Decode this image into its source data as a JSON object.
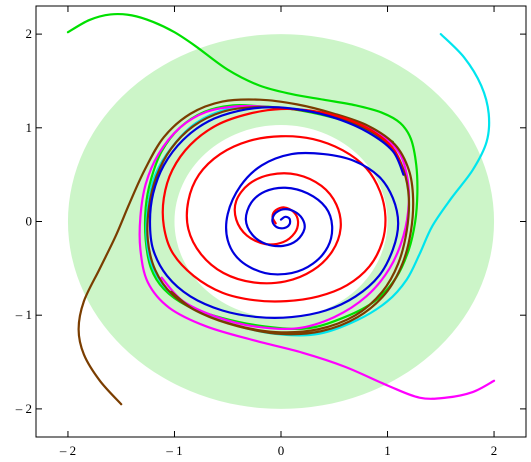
{
  "chart_data": {
    "type": "line",
    "title": "",
    "xlabel": "",
    "ylabel": "",
    "xlim": [
      -2.3,
      2.3
    ],
    "ylim": [
      -2.3,
      2.3
    ],
    "grid": false,
    "x_ticks": [
      {
        "value": -2,
        "label": "– 2"
      },
      {
        "value": -1,
        "label": "– 1"
      },
      {
        "value": 0,
        "label": "0"
      },
      {
        "value": 1,
        "label": "1"
      },
      {
        "value": 2,
        "label": "2"
      }
    ],
    "y_ticks": [
      {
        "value": -2,
        "label": "– 2"
      },
      {
        "value": -1,
        "label": "– 1"
      },
      {
        "value": 0,
        "label": "0"
      },
      {
        "value": 1,
        "label": "1"
      },
      {
        "value": 2,
        "label": "2"
      }
    ],
    "shaded_annulus": {
      "color": "#ccf5c8",
      "center": [
        0,
        0
      ],
      "inner_radius_x": 1.0,
      "inner_radius_y": 1.03,
      "outer_radius_x": 2.0,
      "outer_radius_y": 2.0
    },
    "series": [
      {
        "color": "#00e000",
        "points": [
          [
            -2.0,
            2.02
          ],
          [
            -1.8,
            2.15
          ],
          [
            -1.6,
            2.21
          ],
          [
            -1.4,
            2.2
          ],
          [
            -1.2,
            2.13
          ],
          [
            -1.0,
            2.02
          ],
          [
            -0.8,
            1.87
          ],
          [
            -0.5,
            1.62
          ],
          [
            -0.2,
            1.45
          ],
          [
            0.1,
            1.36
          ],
          [
            0.4,
            1.3
          ],
          [
            0.7,
            1.24
          ],
          [
            0.95,
            1.16
          ],
          [
            1.12,
            1.05
          ],
          [
            1.22,
            0.88
          ],
          [
            1.27,
            0.6
          ],
          [
            1.28,
            0.3
          ],
          [
            1.26,
            0.0
          ],
          [
            1.2,
            -0.3
          ],
          [
            1.08,
            -0.6
          ],
          [
            0.88,
            -0.85
          ],
          [
            0.6,
            -1.02
          ],
          [
            0.25,
            -1.14
          ],
          [
            -0.15,
            -1.12
          ],
          [
            -0.55,
            -1.03
          ],
          [
            -0.88,
            -0.9
          ],
          [
            -1.1,
            -0.72
          ],
          [
            -1.22,
            -0.5
          ],
          [
            -1.27,
            -0.2
          ],
          [
            -1.27,
            0.15
          ],
          [
            -1.22,
            0.45
          ],
          [
            -1.12,
            0.75
          ],
          [
            -0.95,
            1.0
          ],
          [
            -0.72,
            1.17
          ],
          [
            -0.45,
            1.24
          ],
          [
            -0.2,
            1.23
          ],
          [
            0.1,
            1.2
          ],
          [
            0.45,
            1.12
          ],
          [
            0.8,
            1.0
          ],
          [
            1.05,
            0.85
          ]
        ]
      },
      {
        "color": "#00e5ee",
        "points": [
          [
            1.5,
            2.0
          ],
          [
            1.72,
            1.75
          ],
          [
            1.88,
            1.45
          ],
          [
            1.95,
            1.15
          ],
          [
            1.93,
            0.85
          ],
          [
            1.8,
            0.55
          ],
          [
            1.6,
            0.25
          ],
          [
            1.42,
            -0.05
          ],
          [
            1.3,
            -0.35
          ],
          [
            1.18,
            -0.62
          ],
          [
            1.0,
            -0.85
          ],
          [
            0.72,
            -1.05
          ],
          [
            0.35,
            -1.2
          ],
          [
            -0.05,
            -1.2
          ],
          [
            -0.45,
            -1.1
          ],
          [
            -0.8,
            -0.95
          ],
          [
            -1.05,
            -0.75
          ],
          [
            -1.2,
            -0.5
          ],
          [
            -1.26,
            -0.2
          ],
          [
            -1.25,
            0.15
          ],
          [
            -1.18,
            0.5
          ],
          [
            -1.02,
            0.8
          ],
          [
            -0.8,
            1.05
          ],
          [
            -0.5,
            1.2
          ],
          [
            -0.2,
            1.22
          ],
          [
            0.15,
            1.2
          ],
          [
            0.5,
            1.12
          ],
          [
            0.82,
            0.98
          ],
          [
            1.05,
            0.78
          ],
          [
            1.15,
            0.55
          ]
        ]
      },
      {
        "color": "#ff00ff",
        "points": [
          [
            2.0,
            -1.7
          ],
          [
            1.8,
            -1.82
          ],
          [
            1.55,
            -1.88
          ],
          [
            1.3,
            -1.88
          ],
          [
            1.0,
            -1.75
          ],
          [
            0.6,
            -1.55
          ],
          [
            0.2,
            -1.4
          ],
          [
            -0.25,
            -1.27
          ],
          [
            -0.7,
            -1.12
          ],
          [
            -1.05,
            -0.92
          ],
          [
            -1.25,
            -0.65
          ],
          [
            -1.32,
            -0.3
          ],
          [
            -1.32,
            0.05
          ],
          [
            -1.27,
            0.4
          ],
          [
            -1.15,
            0.72
          ],
          [
            -0.95,
            1.0
          ],
          [
            -0.7,
            1.17
          ],
          [
            -0.4,
            1.23
          ],
          [
            -0.1,
            1.22
          ],
          [
            0.25,
            1.18
          ],
          [
            0.6,
            1.1
          ],
          [
            0.9,
            0.95
          ],
          [
            1.1,
            0.75
          ],
          [
            1.18,
            0.5
          ],
          [
            1.2,
            0.2
          ],
          [
            1.15,
            -0.15
          ],
          [
            1.02,
            -0.5
          ],
          [
            0.8,
            -0.8
          ],
          [
            0.5,
            -1.02
          ],
          [
            0.15,
            -1.14
          ],
          [
            -0.25,
            -1.12
          ],
          [
            -0.6,
            -1.02
          ],
          [
            -0.92,
            -0.85
          ],
          [
            -1.12,
            -0.6
          ]
        ]
      },
      {
        "color": "#7a3d00",
        "points": [
          [
            -1.5,
            -1.95
          ],
          [
            -1.7,
            -1.7
          ],
          [
            -1.85,
            -1.42
          ],
          [
            -1.9,
            -1.15
          ],
          [
            -1.85,
            -0.85
          ],
          [
            -1.7,
            -0.5
          ],
          [
            -1.55,
            -0.15
          ],
          [
            -1.42,
            0.2
          ],
          [
            -1.28,
            0.55
          ],
          [
            -1.1,
            0.9
          ],
          [
            -0.85,
            1.15
          ],
          [
            -0.55,
            1.28
          ],
          [
            -0.2,
            1.3
          ],
          [
            0.15,
            1.25
          ],
          [
            0.5,
            1.15
          ],
          [
            0.82,
            1.02
          ],
          [
            1.07,
            0.82
          ],
          [
            1.2,
            0.55
          ],
          [
            1.24,
            0.25
          ],
          [
            1.22,
            -0.1
          ],
          [
            1.14,
            -0.45
          ],
          [
            0.98,
            -0.77
          ],
          [
            0.72,
            -1.02
          ],
          [
            0.38,
            -1.17
          ],
          [
            0.0,
            -1.2
          ],
          [
            -0.4,
            -1.12
          ],
          [
            -0.75,
            -0.98
          ],
          [
            -1.02,
            -0.78
          ],
          [
            -1.18,
            -0.52
          ],
          [
            -1.25,
            -0.2
          ],
          [
            -1.24,
            0.15
          ],
          [
            -1.17,
            0.48
          ],
          [
            -1.03,
            0.78
          ],
          [
            -0.82,
            1.02
          ],
          [
            -0.55,
            1.17
          ],
          [
            -0.25,
            1.22
          ],
          [
            0.1,
            1.2
          ],
          [
            0.45,
            1.13
          ],
          [
            0.78,
            1.0
          ],
          [
            1.03,
            0.8
          ],
          [
            1.15,
            0.55
          ],
          [
            1.2,
            0.25
          ],
          [
            1.18,
            -0.1
          ],
          [
            1.1,
            -0.45
          ],
          [
            0.95,
            -0.75
          ],
          [
            0.7,
            -1.0
          ],
          [
            0.35,
            -1.15
          ],
          [
            -0.05,
            -1.18
          ],
          [
            -0.45,
            -1.1
          ],
          [
            -0.8,
            -0.95
          ],
          [
            -1.03,
            -0.75
          ]
        ]
      },
      {
        "color": "#ff0000",
        "points": [
          [
            -0.05,
            -0.02
          ],
          [
            -0.08,
            0.05
          ],
          [
            -0.05,
            0.12
          ],
          [
            0.03,
            0.15
          ],
          [
            0.12,
            0.1
          ],
          [
            0.16,
            0.0
          ],
          [
            0.13,
            -0.12
          ],
          [
            0.02,
            -0.22
          ],
          [
            -0.15,
            -0.24
          ],
          [
            -0.32,
            -0.15
          ],
          [
            -0.42,
            0.02
          ],
          [
            -0.42,
            0.22
          ],
          [
            -0.3,
            0.4
          ],
          [
            -0.1,
            0.5
          ],
          [
            0.15,
            0.5
          ],
          [
            0.38,
            0.38
          ],
          [
            0.52,
            0.18
          ],
          [
            0.56,
            -0.07
          ],
          [
            0.48,
            -0.32
          ],
          [
            0.3,
            -0.52
          ],
          [
            0.04,
            -0.64
          ],
          [
            -0.26,
            -0.65
          ],
          [
            -0.54,
            -0.55
          ],
          [
            -0.75,
            -0.35
          ],
          [
            -0.87,
            -0.08
          ],
          [
            -0.87,
            0.22
          ],
          [
            -0.77,
            0.5
          ],
          [
            -0.57,
            0.72
          ],
          [
            -0.3,
            0.86
          ],
          [
            0.0,
            0.91
          ],
          [
            0.3,
            0.88
          ],
          [
            0.58,
            0.76
          ],
          [
            0.8,
            0.57
          ],
          [
            0.93,
            0.32
          ],
          [
            0.98,
            0.05
          ],
          [
            0.95,
            -0.22
          ],
          [
            0.83,
            -0.48
          ],
          [
            0.62,
            -0.68
          ],
          [
            0.35,
            -0.8
          ],
          [
            0.05,
            -0.85
          ],
          [
            -0.25,
            -0.84
          ],
          [
            -0.55,
            -0.76
          ],
          [
            -0.82,
            -0.58
          ],
          [
            -1.02,
            -0.33
          ],
          [
            -1.1,
            -0.05
          ],
          [
            -1.1,
            0.25
          ],
          [
            -1.02,
            0.55
          ],
          [
            -0.85,
            0.82
          ],
          [
            -0.6,
            1.03
          ],
          [
            -0.3,
            1.15
          ],
          [
            0.0,
            1.2
          ],
          [
            0.3,
            1.18
          ],
          [
            0.6,
            1.1
          ],
          [
            0.88,
            0.95
          ],
          [
            1.07,
            0.75
          ],
          [
            1.15,
            0.5
          ]
        ]
      },
      {
        "color": "#0000dd",
        "points": [
          [
            0.0,
            0.02
          ],
          [
            0.04,
            0.05
          ],
          [
            0.08,
            0.03
          ],
          [
            0.08,
            -0.03
          ],
          [
            0.03,
            -0.07
          ],
          [
            -0.04,
            -0.06
          ],
          [
            -0.08,
            0.0
          ],
          [
            -0.06,
            0.08
          ],
          [
            0.02,
            0.13
          ],
          [
            0.12,
            0.11
          ],
          [
            0.2,
            0.03
          ],
          [
            0.22,
            -0.08
          ],
          [
            0.15,
            -0.2
          ],
          [
            0.02,
            -0.26
          ],
          [
            -0.14,
            -0.24
          ],
          [
            -0.27,
            -0.14
          ],
          [
            -0.33,
            0.02
          ],
          [
            -0.28,
            0.2
          ],
          [
            -0.15,
            0.32
          ],
          [
            0.04,
            0.36
          ],
          [
            0.25,
            0.3
          ],
          [
            0.42,
            0.15
          ],
          [
            0.48,
            -0.05
          ],
          [
            0.44,
            -0.27
          ],
          [
            0.3,
            -0.45
          ],
          [
            0.1,
            -0.55
          ],
          [
            -0.15,
            -0.55
          ],
          [
            -0.38,
            -0.42
          ],
          [
            -0.5,
            -0.2
          ],
          [
            -0.5,
            0.08
          ],
          [
            -0.38,
            0.38
          ],
          [
            -0.18,
            0.6
          ],
          [
            0.1,
            0.72
          ],
          [
            0.4,
            0.72
          ],
          [
            0.68,
            0.65
          ],
          [
            0.92,
            0.48
          ],
          [
            1.05,
            0.25
          ],
          [
            1.1,
            -0.02
          ],
          [
            1.05,
            -0.3
          ],
          [
            0.92,
            -0.58
          ],
          [
            0.7,
            -0.8
          ],
          [
            0.42,
            -0.95
          ],
          [
            0.1,
            -1.02
          ],
          [
            -0.22,
            -1.02
          ],
          [
            -0.55,
            -0.95
          ],
          [
            -0.85,
            -0.8
          ],
          [
            -1.07,
            -0.58
          ],
          [
            -1.2,
            -0.3
          ],
          [
            -1.23,
            0.0
          ],
          [
            -1.2,
            0.3
          ],
          [
            -1.1,
            0.6
          ],
          [
            -0.92,
            0.87
          ],
          [
            -0.68,
            1.07
          ],
          [
            -0.4,
            1.18
          ],
          [
            -0.1,
            1.22
          ],
          [
            0.2,
            1.19
          ],
          [
            0.52,
            1.1
          ],
          [
            0.82,
            0.95
          ],
          [
            1.05,
            0.75
          ],
          [
            1.15,
            0.5
          ]
        ]
      }
    ]
  }
}
